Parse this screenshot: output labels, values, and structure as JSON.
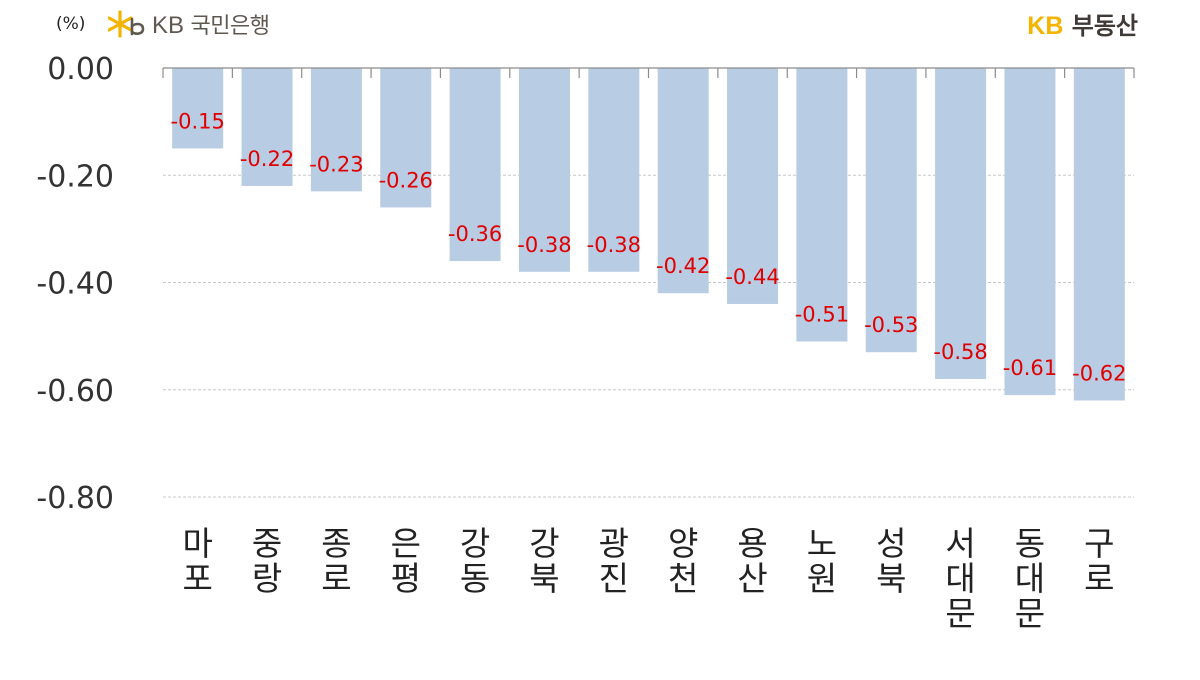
{
  "header": {
    "unit": "(%)",
    "bank_logo_prefix": "KB",
    "bank_logo_name": "국민은행",
    "realty_logo_prefix": "KB",
    "realty_logo_name": "부동산",
    "realty_accent_color": "#f5b400",
    "bank_star_color": "#f5b400"
  },
  "chart_data": {
    "type": "bar",
    "categories": [
      "마포",
      "중랑",
      "종로",
      "은평",
      "강동",
      "강북",
      "광진",
      "양천",
      "용산",
      "노원",
      "성북",
      "서대문",
      "동대문",
      "구로"
    ],
    "values": [
      -0.15,
      -0.22,
      -0.23,
      -0.26,
      -0.36,
      -0.38,
      -0.38,
      -0.42,
      -0.44,
      -0.51,
      -0.53,
      -0.58,
      -0.61,
      -0.62
    ],
    "data_labels": [
      "-0.15",
      "-0.22",
      "-0.23",
      "-0.26",
      "-0.36",
      "-0.38",
      "-0.38",
      "-0.42",
      "-0.44",
      "-0.51",
      "-0.53",
      "-0.58",
      "-0.61",
      "-0.62"
    ],
    "y_ticks": [
      0,
      -0.2,
      -0.4,
      -0.6,
      -0.8
    ],
    "y_tick_labels": [
      "0.00",
      "-0.20",
      "-0.40",
      "-0.60",
      "-0.80"
    ],
    "ylim": [
      -0.8,
      0
    ],
    "title": "",
    "xlabel": "",
    "ylabel": "",
    "grid": true,
    "legend": false,
    "bar_color": "#b8cce4",
    "label_color": "#e00000",
    "x_axis_position": "top"
  }
}
